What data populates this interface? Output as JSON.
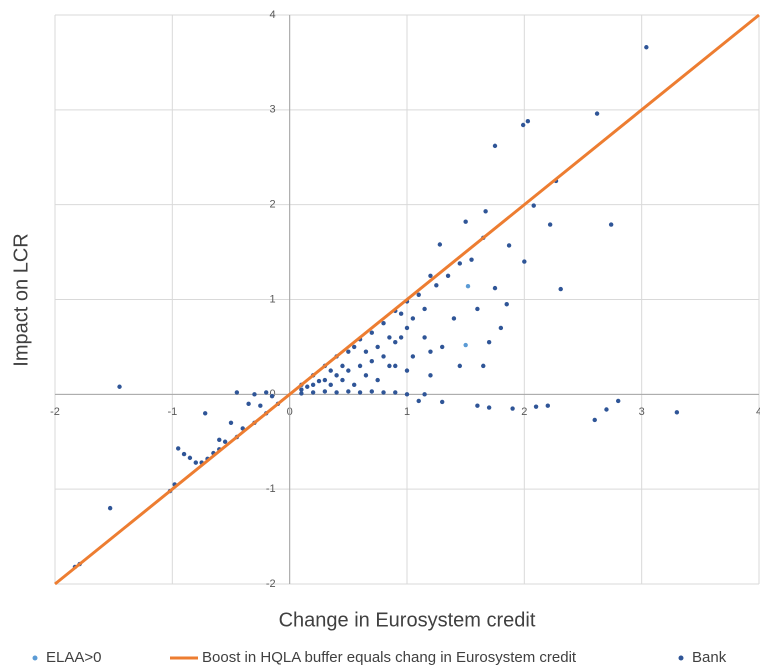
{
  "chart_data": {
    "type": "scatter",
    "x_label": "Change in Eurosystem credit",
    "y_label": "Impact on LCR",
    "xlim": [
      -2,
      4
    ],
    "ylim": [
      -2,
      4
    ],
    "xticks": [
      -2,
      -1,
      0,
      1,
      2,
      3,
      4
    ],
    "yticks": [
      -2,
      -1,
      0,
      1,
      2,
      3,
      4
    ],
    "grid": true,
    "legend": "bottom",
    "series": [
      {
        "name": "ELAA>0",
        "kind": "scatter",
        "color": "#5b9bd5",
        "x": [
          1.52,
          1.5
        ],
        "values": [
          1.14,
          0.52
        ]
      },
      {
        "name": "Boost in HQLA buffer equals chang in Eurosystem credit",
        "kind": "line",
        "color": "#ed7d31",
        "x": [
          -2,
          4
        ],
        "values": [
          -2,
          4
        ]
      },
      {
        "name": "Bank",
        "kind": "scatter",
        "color": "#2f5597",
        "x": [
          3.04,
          2.62,
          2.03,
          1.99,
          1.75,
          2.27,
          2.08,
          2.22,
          2.74,
          1.67,
          1.5,
          1.87,
          2.0,
          2.31,
          -1.45,
          -1.53,
          -1.79,
          -1.83,
          -1.02,
          -0.98,
          -0.95,
          -0.9,
          -0.85,
          -0.8,
          -0.75,
          -0.7,
          -0.72,
          -0.5,
          -0.45,
          -0.3,
          -0.2,
          -0.1,
          -0.4,
          -0.55,
          -0.6,
          -0.3,
          -0.2,
          -0.45,
          -0.15,
          -0.35,
          -0.25,
          -0.6,
          -0.65,
          1.1,
          1.3,
          1.6,
          1.7,
          1.9,
          2.1,
          2.2,
          2.6,
          2.7,
          2.8,
          3.3,
          1.4,
          1.3,
          1.6,
          1.75,
          1.85,
          1.7,
          1.65,
          1.8,
          1.45,
          1.2,
          1.35,
          1.55,
          1.45,
          1.65,
          1.28,
          1.2,
          1.25,
          1.1,
          1.05,
          1.15,
          0.95,
          0.9,
          0.1,
          0.1,
          0.1,
          0.2,
          0.2,
          0.2,
          0.3,
          0.3,
          0.3,
          0.4,
          0.4,
          0.4,
          0.5,
          0.5,
          0.5,
          0.6,
          0.6,
          0.6,
          0.7,
          0.7,
          0.7,
          0.8,
          0.8,
          0.8,
          0.9,
          0.9,
          0.9,
          1.0,
          1.0,
          1.0,
          1.0,
          1.15,
          1.15,
          1.2,
          0.15,
          0.25,
          0.35,
          0.45,
          0.55,
          0.65,
          0.75,
          0.85,
          0.35,
          0.55,
          0.65,
          0.75,
          0.85,
          0.95,
          1.05,
          0.45
        ],
        "values": [
          3.66,
          2.96,
          2.88,
          2.84,
          2.62,
          2.25,
          1.99,
          1.79,
          1.79,
          1.93,
          1.82,
          1.57,
          1.4,
          1.11,
          0.08,
          -1.2,
          -1.79,
          -1.82,
          -1.02,
          -0.95,
          -0.57,
          -0.63,
          -0.67,
          -0.72,
          -0.72,
          -0.68,
          -0.2,
          -0.3,
          -0.45,
          -0.3,
          -0.2,
          -0.1,
          -0.36,
          -0.5,
          -0.58,
          0.0,
          0.02,
          0.02,
          -0.02,
          -0.1,
          -0.12,
          -0.48,
          -0.62,
          -0.07,
          -0.08,
          -0.12,
          -0.14,
          -0.15,
          -0.13,
          -0.12,
          -0.27,
          -0.16,
          -0.07,
          -0.19,
          0.8,
          0.5,
          0.9,
          1.12,
          0.95,
          0.55,
          0.3,
          0.7,
          0.3,
          0.2,
          1.25,
          1.42,
          1.38,
          1.65,
          1.58,
          1.25,
          1.15,
          1.05,
          0.4,
          0.6,
          0.85,
          0.3,
          0.01,
          0.05,
          0.1,
          0.02,
          0.1,
          0.2,
          0.03,
          0.15,
          0.3,
          0.02,
          0.2,
          0.4,
          0.03,
          0.25,
          0.45,
          0.02,
          0.3,
          0.58,
          0.03,
          0.35,
          0.65,
          0.02,
          0.4,
          0.75,
          0.02,
          0.55,
          0.88,
          0.0,
          0.25,
          0.7,
          0.98,
          0.0,
          0.9,
          0.45,
          0.08,
          0.14,
          0.1,
          0.3,
          0.1,
          0.45,
          0.15,
          0.6,
          0.25,
          0.5,
          0.2,
          0.5,
          0.3,
          0.6,
          0.8,
          0.15
        ]
      }
    ]
  }
}
